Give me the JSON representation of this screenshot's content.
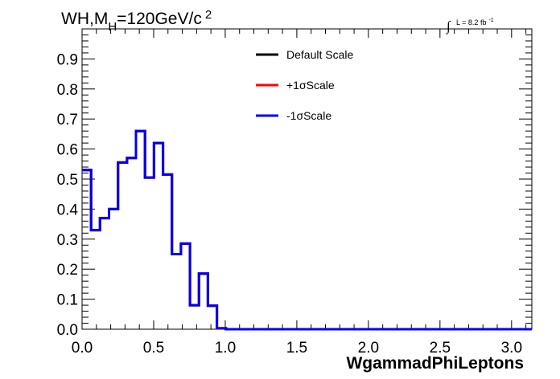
{
  "chart_data": {
    "type": "line",
    "step": true,
    "title_main": "WH,M",
    "title_sub": "H",
    "title_rest": "=120GeV/c",
    "title_sup": "2",
    "lumi_main": "L = 8.2 fb",
    "lumi_sup": "-1",
    "integral_symbol": "∫",
    "xlabel": "WgammadPhiLeptons",
    "ylabel": "",
    "xlim": [
      0,
      3.14159
    ],
    "ylim": [
      0,
      1.0
    ],
    "xticks": [
      0.0,
      0.5,
      1.0,
      1.5,
      2.0,
      2.5,
      3.0
    ],
    "xtick_labels": [
      "0.0",
      "0.5",
      "1.0",
      "1.5",
      "2.0",
      "2.5",
      "3.0"
    ],
    "yticks": [
      0.0,
      0.1,
      0.2,
      0.3,
      0.4,
      0.5,
      0.6,
      0.7,
      0.8,
      0.9
    ],
    "ytick_labels": [
      "0.0",
      "0.1",
      "0.2",
      "0.3",
      "0.4",
      "0.5",
      "0.6",
      "0.7",
      "0.8",
      "0.9"
    ],
    "bin_width": 0.0628,
    "legend_position": "top-center",
    "series": [
      {
        "name": "Default Scale",
        "color": "#000000",
        "values": [
          0.53,
          0.33,
          0.37,
          0.4,
          0.555,
          0.57,
          0.66,
          0.505,
          0.62,
          0.515,
          0.25,
          0.285,
          0.08,
          0.185,
          0.078,
          0.003,
          0,
          0,
          0,
          0,
          0,
          0,
          0,
          0,
          0,
          0,
          0,
          0,
          0,
          0,
          0,
          0,
          0,
          0,
          0,
          0,
          0,
          0,
          0,
          0,
          0,
          0,
          0,
          0,
          0,
          0,
          0,
          0,
          0,
          0
        ]
      },
      {
        "name": "+1σScale",
        "color": "#ff0000",
        "values": [
          0.53,
          0.33,
          0.37,
          0.4,
          0.555,
          0.57,
          0.66,
          0.505,
          0.62,
          0.515,
          0.25,
          0.285,
          0.08,
          0.185,
          0.078,
          0.003,
          0,
          0,
          0,
          0,
          0,
          0,
          0,
          0,
          0,
          0,
          0,
          0,
          0,
          0,
          0,
          0,
          0,
          0,
          0,
          0,
          0,
          0,
          0,
          0,
          0,
          0,
          0,
          0,
          0,
          0,
          0,
          0,
          0,
          0
        ]
      },
      {
        "name": "-1σScale",
        "color": "#0000ee",
        "values": [
          0.53,
          0.33,
          0.37,
          0.4,
          0.555,
          0.57,
          0.66,
          0.505,
          0.62,
          0.515,
          0.25,
          0.285,
          0.08,
          0.185,
          0.078,
          0.003,
          0,
          0,
          0,
          0,
          0,
          0,
          0,
          0,
          0,
          0,
          0,
          0,
          0,
          0,
          0,
          0,
          0,
          0,
          0,
          0,
          0,
          0,
          0,
          0,
          0,
          0,
          0,
          0,
          0,
          0,
          0,
          0,
          0,
          0
        ]
      }
    ]
  }
}
